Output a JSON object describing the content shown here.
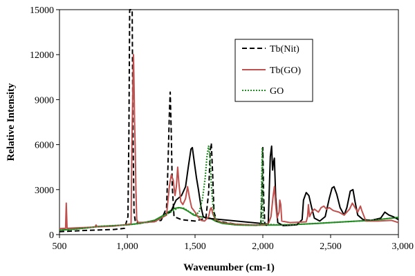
{
  "chart_data": {
    "type": "line",
    "title": "",
    "xlabel": "Wavenumber (cm-1)",
    "ylabel": "Relative Intensity",
    "xlim": [
      500,
      3000
    ],
    "ylim": [
      0,
      15000
    ],
    "x_ticks": [
      500,
      1000,
      1500,
      2000,
      2500,
      3000
    ],
    "x_tick_labels": [
      "500",
      "1,000",
      "1,500",
      "2,000",
      "2,500",
      "3,000"
    ],
    "y_ticks": [
      0,
      3000,
      6000,
      9000,
      12000,
      15000
    ],
    "y_tick_labels": [
      "0",
      "3000",
      "6000",
      "9000",
      "12000",
      "15000"
    ],
    "grid": false,
    "legend_position": "upper-right",
    "series": [
      {
        "name": "Tb(Nit)",
        "color": "#000000",
        "style": "dashed",
        "points": [
          [
            500,
            200
          ],
          [
            700,
            280
          ],
          [
            900,
            340
          ],
          [
            980,
            420
          ],
          [
            1005,
            1200
          ],
          [
            1012,
            7000
          ],
          [
            1018,
            15000
          ],
          [
            1030,
            15000
          ],
          [
            1036,
            15000
          ],
          [
            1042,
            7000
          ],
          [
            1050,
            1500
          ],
          [
            1060,
            800
          ],
          [
            1150,
            820
          ],
          [
            1250,
            950
          ],
          [
            1290,
            1800
          ],
          [
            1300,
            4500
          ],
          [
            1310,
            8000
          ],
          [
            1317,
            9500
          ],
          [
            1324,
            7000
          ],
          [
            1332,
            3200
          ],
          [
            1345,
            1200
          ],
          [
            1400,
            1000
          ],
          [
            1500,
            900
          ],
          [
            1580,
            1100
          ],
          [
            1600,
            2800
          ],
          [
            1612,
            5600
          ],
          [
            1620,
            6100
          ],
          [
            1630,
            4000
          ],
          [
            1640,
            1500
          ],
          [
            1660,
            900
          ],
          [
            1800,
            700
          ],
          [
            1900,
            650
          ],
          [
            1960,
            620
          ],
          [
            1985,
            700
          ],
          [
            1994,
            2500
          ],
          [
            2000,
            5800
          ],
          [
            2006,
            2500
          ],
          [
            2015,
            700
          ],
          [
            2030,
            600
          ],
          [
            2050,
            620
          ]
        ]
      },
      {
        "name": "",
        "color": "#000000",
        "style": "solid",
        "points": [
          [
            1280,
            1400
          ],
          [
            1320,
            1500
          ],
          [
            1360,
            2300
          ],
          [
            1400,
            2600
          ],
          [
            1430,
            3200
          ],
          [
            1450,
            4500
          ],
          [
            1470,
            5700
          ],
          [
            1480,
            5800
          ],
          [
            1495,
            4800
          ],
          [
            1510,
            3800
          ],
          [
            1525,
            3000
          ],
          [
            1545,
            1800
          ],
          [
            1560,
            1200
          ],
          [
            1580,
            1100
          ],
          [
            2040,
            700
          ],
          [
            2055,
            5200
          ],
          [
            2065,
            5900
          ],
          [
            2072,
            4300
          ],
          [
            2078,
            4800
          ],
          [
            2085,
            5100
          ],
          [
            2095,
            2500
          ],
          [
            2110,
            800
          ],
          [
            2150,
            600
          ],
          [
            2250,
            650
          ],
          [
            2290,
            1000
          ],
          [
            2300,
            2300
          ],
          [
            2320,
            2800
          ],
          [
            2340,
            2600
          ],
          [
            2360,
            1800
          ],
          [
            2380,
            1100
          ],
          [
            2420,
            900
          ],
          [
            2460,
            1200
          ],
          [
            2490,
            2400
          ],
          [
            2510,
            3100
          ],
          [
            2525,
            3200
          ],
          [
            2545,
            2700
          ],
          [
            2570,
            1800
          ],
          [
            2600,
            1300
          ],
          [
            2620,
            1800
          ],
          [
            2645,
            2900
          ],
          [
            2665,
            3000
          ],
          [
            2680,
            2200
          ],
          [
            2700,
            1300
          ],
          [
            2740,
            1000
          ],
          [
            2800,
            950
          ],
          [
            2870,
            1100
          ],
          [
            2900,
            1500
          ],
          [
            2930,
            1300
          ],
          [
            2960,
            1200
          ],
          [
            3000,
            1000
          ]
        ]
      },
      {
        "name": "Tb(GO)",
        "color": "#c0504d",
        "style": "solid",
        "points": [
          [
            500,
            400
          ],
          [
            545,
            420
          ],
          [
            550,
            2100
          ],
          [
            556,
            420
          ],
          [
            620,
            450
          ],
          [
            760,
            500
          ],
          [
            770,
            640
          ],
          [
            780,
            520
          ],
          [
            900,
            560
          ],
          [
            1000,
            680
          ],
          [
            1028,
            720
          ],
          [
            1034,
            6000
          ],
          [
            1040,
            9000
          ],
          [
            1046,
            12000
          ],
          [
            1050,
            10000
          ],
          [
            1054,
            7500
          ],
          [
            1058,
            6000
          ],
          [
            1064,
            3000
          ],
          [
            1070,
            1000
          ],
          [
            1080,
            800
          ],
          [
            1200,
            850
          ],
          [
            1290,
            1300
          ],
          [
            1310,
            3200
          ],
          [
            1325,
            4000
          ],
          [
            1340,
            3600
          ],
          [
            1352,
            2600
          ],
          [
            1362,
            3200
          ],
          [
            1372,
            4500
          ],
          [
            1380,
            3500
          ],
          [
            1395,
            2200
          ],
          [
            1410,
            2000
          ],
          [
            1430,
            2400
          ],
          [
            1445,
            3200
          ],
          [
            1458,
            2500
          ],
          [
            1475,
            1800
          ],
          [
            1500,
            1500
          ],
          [
            1520,
            1200
          ],
          [
            1545,
            950
          ],
          [
            1570,
            900
          ],
          [
            1600,
            1200
          ],
          [
            1612,
            1700
          ],
          [
            1620,
            1800
          ],
          [
            1630,
            1400
          ],
          [
            1650,
            1000
          ],
          [
            1700,
            800
          ],
          [
            1800,
            700
          ],
          [
            1900,
            650
          ],
          [
            1980,
            640
          ],
          [
            2040,
            700
          ],
          [
            2060,
            1200
          ],
          [
            2075,
            2500
          ],
          [
            2085,
            3200
          ],
          [
            2095,
            2000
          ],
          [
            2105,
            1100
          ],
          [
            2120,
            1500
          ],
          [
            2125,
            2300
          ],
          [
            2132,
            2000
          ],
          [
            2140,
            900
          ],
          [
            2200,
            800
          ],
          [
            2320,
            850
          ],
          [
            2330,
            1200
          ],
          [
            2336,
            2000
          ],
          [
            2345,
            1200
          ],
          [
            2360,
            1500
          ],
          [
            2380,
            1700
          ],
          [
            2410,
            1500
          ],
          [
            2430,
            1800
          ],
          [
            2450,
            1900
          ],
          [
            2470,
            1700
          ],
          [
            2490,
            1800
          ],
          [
            2520,
            1600
          ],
          [
            2560,
            1500
          ],
          [
            2600,
            1300
          ],
          [
            2640,
            1700
          ],
          [
            2660,
            2100
          ],
          [
            2680,
            1800
          ],
          [
            2700,
            1500
          ],
          [
            2720,
            1900
          ],
          [
            2730,
            1600
          ],
          [
            2760,
            900
          ],
          [
            2850,
            900
          ],
          [
            2950,
            950
          ],
          [
            3000,
            800
          ]
        ]
      },
      {
        "name": "GO",
        "color": "#228b22",
        "style": "dotted",
        "points": [
          [
            500,
            300
          ],
          [
            600,
            350
          ],
          [
            700,
            450
          ],
          [
            800,
            550
          ],
          [
            900,
            600
          ],
          [
            1000,
            650
          ],
          [
            1050,
            700
          ],
          [
            1100,
            750
          ],
          [
            1150,
            850
          ],
          [
            1200,
            950
          ],
          [
            1250,
            1150
          ],
          [
            1300,
            1400
          ],
          [
            1350,
            1650
          ],
          [
            1380,
            1800
          ],
          [
            1420,
            1750
          ],
          [
            1460,
            1500
          ],
          [
            1500,
            1300
          ],
          [
            1530,
            1500
          ],
          [
            1555,
            2400
          ],
          [
            1575,
            3800
          ],
          [
            1588,
            5200
          ],
          [
            1600,
            5900
          ],
          [
            1610,
            5200
          ],
          [
            1622,
            3000
          ],
          [
            1640,
            1200
          ],
          [
            1680,
            800
          ],
          [
            1800,
            650
          ],
          [
            1950,
            620
          ],
          [
            1985,
            650
          ],
          [
            1996,
            5800
          ],
          [
            2002,
            700
          ],
          [
            2100,
            650
          ],
          [
            2200,
            660
          ],
          [
            2300,
            700
          ],
          [
            2400,
            750
          ],
          [
            2500,
            800
          ],
          [
            2600,
            850
          ],
          [
            2700,
            900
          ],
          [
            2800,
            950
          ],
          [
            2900,
            1050
          ],
          [
            3000,
            1150
          ]
        ]
      },
      {
        "name": "",
        "color": "#228b22",
        "style": "solid",
        "points": [
          [
            500,
            300
          ],
          [
            600,
            360
          ],
          [
            700,
            440
          ],
          [
            800,
            550
          ],
          [
            900,
            600
          ],
          [
            1000,
            650
          ],
          [
            1100,
            760
          ],
          [
            1200,
            950
          ],
          [
            1250,
            1200
          ],
          [
            1300,
            1500
          ],
          [
            1350,
            1750
          ],
          [
            1380,
            1800
          ],
          [
            1410,
            1750
          ],
          [
            1450,
            1550
          ],
          [
            1490,
            1300
          ],
          [
            1530,
            1200
          ],
          [
            1570,
            1150
          ],
          [
            1610,
            1100
          ],
          [
            1650,
            900
          ],
          [
            1700,
            750
          ],
          [
            1800,
            650
          ],
          [
            1900,
            620
          ],
          [
            2000,
            630
          ],
          [
            2100,
            640
          ],
          [
            2200,
            660
          ],
          [
            2300,
            700
          ],
          [
            2400,
            740
          ],
          [
            2500,
            800
          ],
          [
            2600,
            850
          ],
          [
            2700,
            900
          ],
          [
            2800,
            950
          ],
          [
            2900,
            1050
          ],
          [
            3000,
            1150
          ]
        ]
      }
    ]
  }
}
